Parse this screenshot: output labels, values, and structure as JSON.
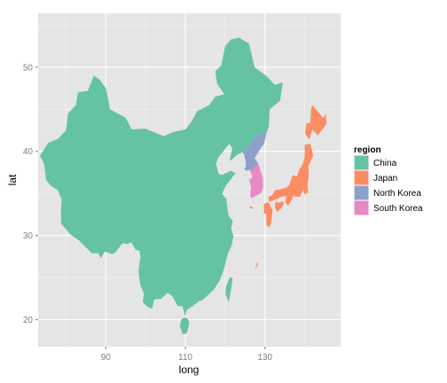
{
  "chart_data": {
    "type": "map",
    "xlabel": "long",
    "ylabel": "lat",
    "xlim": [
      73,
      149
    ],
    "ylim": [
      16.8,
      56.4
    ],
    "x_ticks": [
      90,
      110,
      130
    ],
    "y_ticks": [
      20,
      30,
      40,
      50
    ],
    "x_minor_ticks": [
      80,
      100,
      120,
      140
    ],
    "y_minor_ticks": [
      25,
      35,
      45,
      55
    ],
    "grid": true,
    "background": "#e5e5e5",
    "legend": {
      "title": "region",
      "placement": "right",
      "entries": [
        {
          "label": "China",
          "color": "#66c2a5"
        },
        {
          "label": "Japan",
          "color": "#fc8d62"
        },
        {
          "label": "North Korea",
          "color": "#8da0cb"
        },
        {
          "label": "South Korea",
          "color": "#e78ac3"
        }
      ]
    },
    "regions": [
      {
        "name": "China",
        "color": "#66c2a5",
        "polygons": [
          [
            [
              73.5,
              39.5
            ],
            [
              75.5,
              41
            ],
            [
              78,
              41.5
            ],
            [
              80,
              42.5
            ],
            [
              80.5,
              44.5
            ],
            [
              82.5,
              45.5
            ],
            [
              83,
              47
            ],
            [
              85.5,
              47.2
            ],
            [
              87,
              49
            ],
            [
              88.5,
              48.5
            ],
            [
              90,
              47.5
            ],
            [
              90.7,
              46
            ],
            [
              91,
              45
            ],
            [
              95,
              44
            ],
            [
              96.5,
              42.6
            ],
            [
              100,
              42.7
            ],
            [
              104.5,
              41.8
            ],
            [
              107,
              42.3
            ],
            [
              110,
              42.6
            ],
            [
              111.5,
              43.5
            ],
            [
              113,
              44.8
            ],
            [
              116,
              45.5
            ],
            [
              117.5,
              46.5
            ],
            [
              119.8,
              46.8
            ],
            [
              118,
              48
            ],
            [
              117.5,
              49.5
            ],
            [
              119,
              50.2
            ],
            [
              120,
              52.5
            ],
            [
              121.5,
              53.3
            ],
            [
              123.5,
              53.5
            ],
            [
              126,
              52.8
            ],
            [
              127.4,
              50
            ],
            [
              130.5,
              48.9
            ],
            [
              132.5,
              47.9
            ],
            [
              134.5,
              48.2
            ],
            [
              133.8,
              46
            ],
            [
              131.2,
              45
            ],
            [
              131,
              43
            ],
            [
              130.6,
              42.4
            ],
            [
              129.3,
              42.2
            ],
            [
              127,
              41.5
            ],
            [
              125.8,
              40.5
            ],
            [
              124.3,
              39.9
            ],
            [
              123,
              39.6
            ],
            [
              121.6,
              39
            ],
            [
              121.1,
              38.9
            ],
            [
              121.8,
              40.4
            ],
            [
              121,
              40.9
            ],
            [
              119.5,
              40
            ],
            [
              118.2,
              39.2
            ],
            [
              117.7,
              38.5
            ],
            [
              118.4,
              37.3
            ],
            [
              119.2,
              37.2
            ],
            [
              121.4,
              37.7
            ],
            [
              122.6,
              37.4
            ],
            [
              120.3,
              36
            ],
            [
              119.2,
              35
            ],
            [
              120.3,
              34.3
            ],
            [
              120.8,
              32.4
            ],
            [
              121.9,
              31.7
            ],
            [
              121.5,
              30.8
            ],
            [
              122.1,
              29.9
            ],
            [
              121.6,
              28.8
            ],
            [
              120.7,
              27.9
            ],
            [
              119.7,
              26
            ],
            [
              118.6,
              24.6
            ],
            [
              117,
              23.5
            ],
            [
              115.4,
              22.8
            ],
            [
              114.2,
              22.3
            ],
            [
              113.4,
              22.2
            ],
            [
              111.8,
              21.6
            ],
            [
              110.4,
              21.2
            ],
            [
              109.9,
              20.4
            ],
            [
              109.3,
              21.6
            ],
            [
              108.1,
              21.6
            ],
            [
              106.7,
              22.8
            ],
            [
              105.5,
              23.2
            ],
            [
              104,
              22.5
            ],
            [
              102.2,
              22.4
            ],
            [
              101.6,
              21.3
            ],
            [
              100.3,
              21.6
            ],
            [
              99.3,
              22.1
            ],
            [
              99.6,
              23.1
            ],
            [
              98.7,
              24.1
            ],
            [
              98.2,
              25.7
            ],
            [
              98.7,
              27.5
            ],
            [
              98.4,
              28.2
            ],
            [
              97.5,
              28.3
            ],
            [
              96.4,
              29.2
            ],
            [
              95.4,
              29
            ],
            [
              94.2,
              29.1
            ],
            [
              92.4,
              28
            ],
            [
              91.6,
              27.8
            ],
            [
              89.7,
              28.1
            ],
            [
              88.8,
              27.3
            ],
            [
              88.1,
              27.9
            ],
            [
              86.5,
              27.9
            ],
            [
              85,
              28.6
            ],
            [
              83.3,
              29.4
            ],
            [
              81.2,
              30.1
            ],
            [
              78.8,
              31.4
            ],
            [
              78.7,
              32.6
            ],
            [
              78.9,
              34.3
            ],
            [
              77.9,
              35.4
            ],
            [
              76.2,
              35.9
            ],
            [
              75,
              36.6
            ],
            [
              74.5,
              38.5
            ]
          ],
          [
            [
              108.6,
              19.3
            ],
            [
              109.3,
              18.3
            ],
            [
              110.1,
              18.3
            ],
            [
              110.5,
              18.6
            ],
            [
              111,
              19.7
            ],
            [
              110.6,
              20.1
            ],
            [
              109.8,
              20.3
            ],
            [
              109,
              20
            ]
          ],
          [
            [
              121.1,
              25
            ],
            [
              121.9,
              25
            ],
            [
              121.5,
              23.6
            ],
            [
              120.9,
              22.1
            ],
            [
              120.1,
              23
            ],
            [
              120.2,
              23.9
            ]
          ]
        ]
      },
      {
        "name": "North Korea",
        "color": "#8da0cb",
        "polygons": [
          [
            [
              124.3,
              39.9
            ],
            [
              125.8,
              40.5
            ],
            [
              127,
              41.5
            ],
            [
              129.3,
              42.2
            ],
            [
              130.6,
              42.4
            ],
            [
              130.4,
              42.2
            ],
            [
              129.8,
              41
            ],
            [
              129.7,
              40.8
            ],
            [
              129.2,
              40.6
            ],
            [
              128.2,
              39.8
            ],
            [
              127.5,
              39.3
            ],
            [
              127.4,
              39.2
            ],
            [
              128.1,
              38.7
            ],
            [
              128.3,
              38.6
            ],
            [
              127.8,
              38.3
            ],
            [
              126.7,
              37.8
            ],
            [
              126.2,
              37.8
            ],
            [
              125.2,
              37.7
            ],
            [
              124.7,
              38
            ],
            [
              125.2,
              38.1
            ],
            [
              125.1,
              38.9
            ],
            [
              124.8,
              39.6
            ]
          ]
        ]
      },
      {
        "name": "South Korea",
        "color": "#e78ac3",
        "polygons": [
          [
            [
              126.2,
              37.8
            ],
            [
              126.7,
              37.8
            ],
            [
              127.8,
              38.3
            ],
            [
              128.3,
              38.6
            ],
            [
              129,
              37.5
            ],
            [
              129.5,
              36.8
            ],
            [
              129.5,
              35.6
            ],
            [
              129.1,
              35.1
            ],
            [
              128,
              34.8
            ],
            [
              126.6,
              34.4
            ],
            [
              126.3,
              34.8
            ],
            [
              126.5,
              35.7
            ],
            [
              126.1,
              36.7
            ],
            [
              126.9,
              36.9
            ]
          ],
          [
            [
              126.2,
              33.5
            ],
            [
              126.9,
              33.4
            ],
            [
              126.9,
              33.2
            ],
            [
              126.2,
              33.2
            ]
          ]
        ]
      },
      {
        "name": "Japan",
        "color": "#fc8d62",
        "polygons": [
          [
            [
              141.1,
              41.4
            ],
            [
              141.9,
              42.6
            ],
            [
              143.3,
              41.9
            ],
            [
              145.5,
              43.3
            ],
            [
              145.3,
              44.4
            ],
            [
              144.6,
              44
            ],
            [
              141.9,
              45.5
            ],
            [
              141.6,
              45
            ],
            [
              141.4,
              43.4
            ],
            [
              140.4,
              43.3
            ],
            [
              140.1,
              42.1
            ]
          ],
          [
            [
              140.0,
              40.8
            ],
            [
              141.4,
              40.9
            ],
            [
              141.7,
              40.4
            ],
            [
              142.1,
              39.5
            ],
            [
              140.9,
              38.2
            ],
            [
              141.0,
              37.1
            ],
            [
              140.7,
              36
            ],
            [
              140.9,
              35.1
            ],
            [
              139.8,
              34.9
            ],
            [
              139.7,
              35.5
            ],
            [
              138.8,
              34.6
            ],
            [
              137.9,
              34.6
            ],
            [
              137,
              34.7
            ],
            [
              136.8,
              34.3
            ],
            [
              135.8,
              33.5
            ],
            [
              135.1,
              34
            ],
            [
              135.4,
              34.7
            ],
            [
              134,
              34.6
            ],
            [
              133.3,
              34.4
            ],
            [
              132.3,
              34.2
            ],
            [
              131,
              34
            ],
            [
              130.9,
              34.6
            ],
            [
              131.8,
              34.8
            ],
            [
              132.6,
              35.4
            ],
            [
              133.9,
              35.5
            ],
            [
              135.5,
              35.7
            ],
            [
              136.2,
              36.1
            ],
            [
              136.7,
              36.8
            ],
            [
              137,
              37.2
            ],
            [
              138,
              37
            ],
            [
              138.6,
              37.8
            ],
            [
              139.5,
              38.5
            ],
            [
              140,
              39.4
            ],
            [
              140,
              40.2
            ]
          ],
          [
            [
              129.7,
              33.7
            ],
            [
              130.4,
              33.9
            ],
            [
              131,
              33.9
            ],
            [
              131.9,
              33
            ],
            [
              131.6,
              31.5
            ],
            [
              131.1,
              31
            ],
            [
              130.4,
              31.2
            ],
            [
              130.3,
              32.6
            ],
            [
              129.8,
              32.6
            ]
          ],
          [
            [
              132.6,
              34
            ],
            [
              133.5,
              33.9
            ],
            [
              134.6,
              34.1
            ],
            [
              134.7,
              33.7
            ],
            [
              134.2,
              33.3
            ],
            [
              133.1,
              32.8
            ],
            [
              132.5,
              33.3
            ]
          ],
          [
            [
              127.6,
              26.1
            ],
            [
              128.0,
              26.8
            ],
            [
              128.3,
              26.7
            ],
            [
              127.8,
              26.1
            ]
          ]
        ]
      }
    ]
  }
}
